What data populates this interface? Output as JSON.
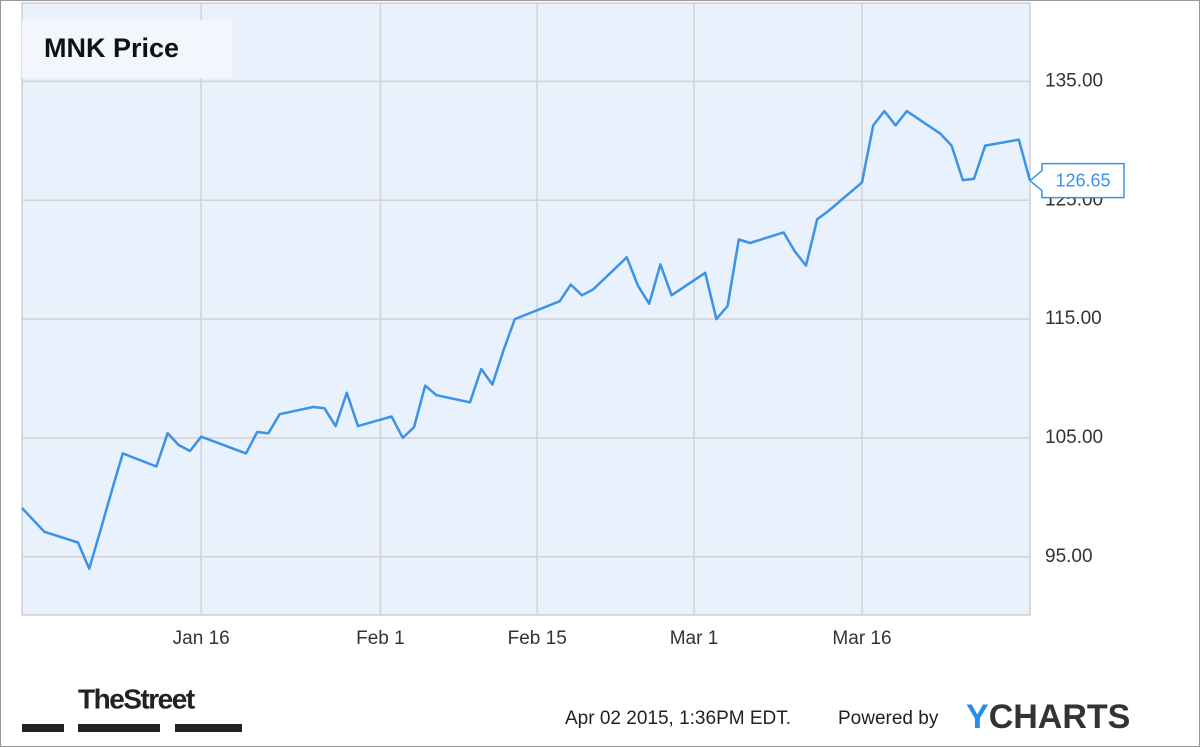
{
  "chart_data": {
    "type": "line",
    "title": "MNK Price",
    "x": [
      "Dec 31",
      "Jan 2",
      "Jan 5",
      "Jan 6",
      "Jan 7",
      "Jan 8",
      "Jan 9",
      "Jan 12",
      "Jan 13",
      "Jan 14",
      "Jan 15",
      "Jan 16",
      "Jan 20",
      "Jan 21",
      "Jan 22",
      "Jan 23",
      "Jan 26",
      "Jan 27",
      "Jan 28",
      "Jan 29",
      "Jan 30",
      "Feb 2",
      "Feb 3",
      "Feb 4",
      "Feb 5",
      "Feb 6",
      "Feb 9",
      "Feb 10",
      "Feb 11",
      "Feb 12",
      "Feb 13",
      "Feb 17",
      "Feb 18",
      "Feb 19",
      "Feb 20",
      "Feb 23",
      "Feb 24",
      "Feb 25",
      "Feb 26",
      "Feb 27",
      "Mar 2",
      "Mar 3",
      "Mar 4",
      "Mar 5",
      "Mar 6",
      "Mar 9",
      "Mar 10",
      "Mar 11",
      "Mar 12",
      "Mar 13",
      "Mar 16",
      "Mar 17",
      "Mar 18",
      "Mar 19",
      "Mar 20",
      "Mar 23",
      "Mar 24",
      "Mar 25",
      "Mar 26",
      "Mar 27",
      "Mar 30",
      "Mar 31"
    ],
    "values": [
      99.1,
      97.1,
      96.2,
      94.0,
      97.2,
      100.5,
      103.7,
      102.6,
      105.4,
      104.4,
      103.9,
      105.1,
      103.7,
      105.5,
      105.4,
      107.0,
      107.6,
      107.5,
      106.0,
      108.8,
      106.0,
      106.8,
      105.0,
      105.9,
      109.4,
      108.6,
      108.0,
      110.8,
      109.5,
      112.4,
      115.0,
      116.5,
      117.9,
      117.0,
      117.5,
      120.2,
      117.8,
      116.3,
      119.6,
      117.0,
      118.9,
      115.0,
      116.1,
      121.7,
      121.4,
      122.3,
      120.7,
      119.5,
      123.4,
      124.1,
      126.5,
      131.3,
      132.5,
      131.3,
      132.5,
      130.6,
      129.6,
      126.7,
      126.8,
      129.6,
      130.1,
      126.65
    ],
    "color": "#3a93e6",
    "xlim": [
      "Dec 31",
      "Mar 31"
    ],
    "xticks": [
      "Jan 16",
      "Feb 1",
      "Feb 15",
      "Mar 1",
      "Mar 16"
    ],
    "ylim": [
      90.1,
      141.6
    ],
    "yticks": [
      {
        "value": 95,
        "label": "95.00"
      },
      {
        "value": 105,
        "label": "105.00"
      },
      {
        "value": 115,
        "label": "115.00"
      },
      {
        "value": 125,
        "label": "125.00"
      },
      {
        "value": 135,
        "label": "135.00"
      }
    ],
    "grid": true
  },
  "footer": {
    "source": "TheStreet",
    "timestamp": "Apr 02 2015, 1:36PM EDT.",
    "powered": "Powered by",
    "brand": "YCHARTS"
  }
}
